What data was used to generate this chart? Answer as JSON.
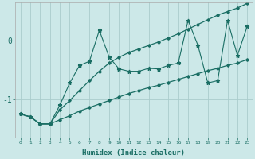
{
  "xlabel": "Humidex (Indice chaleur)",
  "ylabel": "",
  "background_color": "#cce8e8",
  "grid_color": "#aacccc",
  "line_color": "#1a6e64",
  "x_values": [
    0,
    1,
    2,
    3,
    4,
    5,
    6,
    7,
    8,
    9,
    10,
    11,
    12,
    13,
    14,
    15,
    16,
    17,
    18,
    19,
    20,
    21,
    22,
    23
  ],
  "y_jagged": [
    -1.25,
    -1.3,
    -1.42,
    -1.42,
    -1.1,
    -0.72,
    -0.42,
    -0.35,
    0.18,
    -0.28,
    -0.48,
    -0.52,
    -0.52,
    -0.47,
    -0.48,
    -0.42,
    -0.38,
    0.35,
    -0.08,
    -0.72,
    -0.68,
    0.35,
    -0.25,
    0.25
  ],
  "y_lower": [
    -1.25,
    -1.3,
    -1.42,
    -1.42,
    -1.35,
    -1.28,
    -1.2,
    -1.14,
    -1.08,
    -1.02,
    -0.96,
    -0.9,
    -0.85,
    -0.8,
    -0.76,
    -0.71,
    -0.66,
    -0.61,
    -0.56,
    -0.51,
    -0.47,
    -0.42,
    -0.38,
    -0.32
  ],
  "y_upper": [
    -1.25,
    -1.3,
    -1.42,
    -1.42,
    -1.18,
    -1.02,
    -0.85,
    -0.68,
    -0.52,
    -0.38,
    -0.28,
    -0.2,
    -0.14,
    -0.08,
    -0.02,
    0.05,
    0.12,
    0.2,
    0.28,
    0.36,
    0.44,
    0.5,
    0.56,
    0.64
  ],
  "yticks": [
    0,
    -1
  ],
  "ylim": [
    -1.65,
    0.65
  ],
  "xlim": [
    -0.5,
    23.5
  ]
}
